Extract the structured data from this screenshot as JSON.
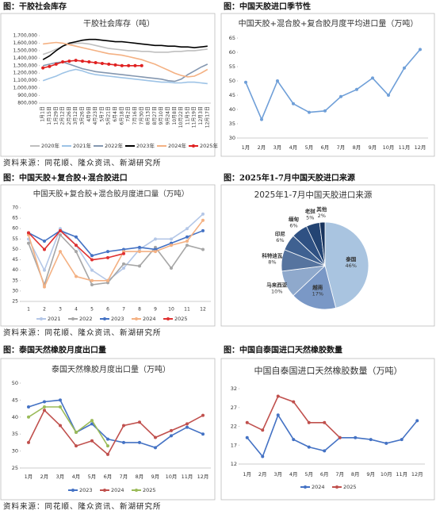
{
  "chart_data": [
    {
      "type": "line",
      "panel_title": "图：干胶社会库存",
      "title": "干胶社会库存（吨）",
      "categories": [
        "1月1日",
        "1月15日",
        "1月29日",
        "2月12日",
        "2月26日",
        "3月12日",
        "3月26日",
        "4月9日",
        "4月23日",
        "5月7日",
        "5月21日",
        "6月4日",
        "6月18日",
        "7月2日",
        "7月16日",
        "7月30日",
        "8月13日",
        "8月27日",
        "9月10日",
        "9月24日",
        "10月8日",
        "10月22日",
        "11月5日",
        "11月19日",
        "12月3日",
        "12月17日"
      ],
      "ylim": [
        800000,
        1700000
      ],
      "yticks": [
        {
          "value": 800000,
          "label": "800,000"
        },
        {
          "value": 900000,
          "label": "900,000"
        },
        {
          "value": 1000000,
          "label": "1,000,000"
        },
        {
          "value": 1100000,
          "label": "1,100,000"
        },
        {
          "value": 1200000,
          "label": "1,200,000"
        },
        {
          "value": 1300000,
          "label": "1,300,000"
        },
        {
          "value": 1400000,
          "label": "1,400,000"
        },
        {
          "value": 1500000,
          "label": "1,500,000"
        },
        {
          "value": 1600000,
          "label": "1,600,000"
        },
        {
          "value": 1700000,
          "label": "1,700,000"
        }
      ],
      "grid": false,
      "series": [
        {
          "name": "2020年",
          "color": "#bfbfbf",
          "values": [
            1450000,
            1480000,
            1520000,
            1560000,
            1590000,
            1600000,
            1600000,
            1590000,
            1570000,
            1550000,
            1530000,
            1520000,
            1510000,
            1500000,
            1500000,
            1490000,
            1490000,
            1480000,
            1480000,
            1480000,
            1490000,
            1490000,
            1500000,
            1500000,
            1510000,
            1520000
          ]
        },
        {
          "name": "2021年",
          "color": "#9dc3e6",
          "values": [
            1100000,
            1130000,
            1160000,
            1200000,
            1230000,
            1250000,
            1230000,
            1200000,
            1180000,
            1170000,
            1160000,
            1150000,
            1140000,
            1130000,
            1120000,
            1110000,
            1100000,
            1090000,
            1080000,
            1080000,
            1070000,
            1070000,
            1080000,
            1080000,
            1070000,
            1060000
          ]
        },
        {
          "name": "2022年",
          "color": "#8497b0",
          "values": [
            1300000,
            1320000,
            1340000,
            1350000,
            1320000,
            1290000,
            1260000,
            1240000,
            1220000,
            1210000,
            1200000,
            1190000,
            1180000,
            1170000,
            1160000,
            1150000,
            1140000,
            1130000,
            1120000,
            1100000,
            1090000,
            1120000,
            1180000,
            1230000,
            1280000,
            1320000
          ]
        },
        {
          "name": "2023年",
          "color": "#000000",
          "values": [
            1380000,
            1430000,
            1500000,
            1560000,
            1600000,
            1620000,
            1640000,
            1650000,
            1650000,
            1640000,
            1630000,
            1620000,
            1620000,
            1610000,
            1600000,
            1590000,
            1580000,
            1570000,
            1570000,
            1560000,
            1560000,
            1550000,
            1550000,
            1540000,
            1550000,
            1560000
          ]
        },
        {
          "name": "2024年",
          "color": "#f4b183",
          "values": [
            1590000,
            1600000,
            1610000,
            1600000,
            1580000,
            1560000,
            1540000,
            1520000,
            1500000,
            1480000,
            1460000,
            1450000,
            1440000,
            1420000,
            1400000,
            1380000,
            1350000,
            1320000,
            1280000,
            1240000,
            1200000,
            1170000,
            1150000,
            1160000,
            1200000,
            1250000
          ]
        },
        {
          "name": "2025年",
          "color": "#e02020",
          "marker": true,
          "values": [
            1270000,
            1290000,
            1320000,
            1350000,
            1360000,
            1370000,
            1360000,
            1350000,
            1340000,
            1330000,
            1320000,
            1310000,
            1300000,
            1300000,
            1300000,
            1300000,
            null,
            null,
            null,
            null,
            null,
            null,
            null,
            null,
            null,
            null
          ]
        }
      ]
    },
    {
      "type": "line",
      "panel_title": "图：中国天胶进口季节性",
      "title": "中国天胶+混合胶+复合胶月度平均进口量（万吨）",
      "categories": [
        "1月",
        "2月",
        "3月",
        "4月",
        "5月",
        "6月",
        "7月",
        "8月",
        "9月",
        "10月",
        "11月",
        "12月"
      ],
      "ylim": [
        30,
        65
      ],
      "yticks": [
        30,
        35,
        40,
        45,
        50,
        55,
        60,
        65
      ],
      "grid": false,
      "series": [
        {
          "name": null,
          "color": "#6f9fd8",
          "marker": true,
          "values": [
            49.5,
            36.5,
            50,
            42,
            39,
            39.5,
            44.5,
            47,
            51,
            45,
            54.5,
            61
          ]
        }
      ]
    },
    {
      "type": "line",
      "panel_title": "图：中国天胶+复合胶+混合胶进口",
      "title": "中国天胶+复合胶+混合胶月度进口量（万吨）",
      "categories": [
        "1",
        "2",
        "3",
        "4",
        "5",
        "6",
        "7",
        "8",
        "9",
        "10",
        "11",
        "12"
      ],
      "ylim": [
        25,
        70
      ],
      "yticks": [
        25,
        30,
        35,
        40,
        45,
        50,
        55,
        60,
        65,
        70
      ],
      "grid": false,
      "series": [
        {
          "name": "2021",
          "color": "#b4c7e7",
          "marker": true,
          "values": [
            55,
            40,
            60,
            52,
            40,
            35,
            41,
            50,
            55,
            55,
            60,
            67
          ]
        },
        {
          "name": "2022",
          "color": "#a6a6a6",
          "marker": true,
          "values": [
            53,
            33,
            57,
            49,
            33,
            34,
            43,
            42,
            51,
            41,
            52,
            50
          ]
        },
        {
          "name": "2023",
          "color": "#4472c4",
          "marker": true,
          "values": [
            58,
            54,
            59,
            56,
            47,
            49,
            50,
            51,
            50,
            53,
            56,
            59
          ]
        },
        {
          "name": "2024",
          "color": "#f4b183",
          "marker": true,
          "values": [
            57,
            32,
            49,
            37,
            35,
            35,
            49,
            49,
            49,
            52,
            54,
            64
          ]
        },
        {
          "name": "2025",
          "color": "#e03030",
          "marker": true,
          "values": [
            58,
            50,
            59,
            52,
            45,
            46,
            48,
            null,
            null,
            null,
            null,
            null
          ]
        }
      ]
    },
    {
      "type": "pie",
      "panel_title": "图：2025年1-7月中国天胶进口来源",
      "title": "2025年1-7月中国天胶进口来源",
      "categories": [
        "泰国",
        "越南",
        "马来西亚",
        "科特迪瓦",
        "印尼",
        "缅甸",
        "老挝",
        "其他"
      ],
      "values": [
        46,
        17,
        10,
        8,
        6,
        6,
        5,
        2
      ],
      "value_labels": [
        "46%",
        "17%",
        "10%",
        "8%",
        "6%",
        "6%",
        "5%",
        "2%"
      ],
      "colors": [
        "#a9c4e0",
        "#7a98c6",
        "#8fa9cc",
        "#56749f",
        "#3f6191",
        "#2f5183",
        "#234473",
        "#18345e"
      ]
    },
    {
      "type": "line",
      "panel_title": "图：泰国天然橡胶月度出口量",
      "title": "泰国天然橡胶月度出口量（万吨）",
      "categories": [
        "1月",
        "2月",
        "3月",
        "4月",
        "5月",
        "6月",
        "7月",
        "8月",
        "9月",
        "10月",
        "11月",
        "12月"
      ],
      "ylim": [
        25,
        50
      ],
      "yticks": [
        25,
        30,
        35,
        40,
        45,
        50
      ],
      "grid": false,
      "series": [
        {
          "name": "2023",
          "color": "#4472c4",
          "marker": true,
          "values": [
            43,
            44.5,
            45,
            35.5,
            38,
            33.5,
            32.5,
            32.5,
            31,
            34.5,
            37,
            35
          ]
        },
        {
          "name": "2024",
          "color": "#c0504d",
          "marker": true,
          "values": [
            32.5,
            42,
            37.5,
            31.5,
            33,
            29,
            37.5,
            38.5,
            34,
            36,
            38,
            40.5
          ]
        },
        {
          "name": "2025",
          "color": "#9bbb59",
          "marker": true,
          "values": [
            40,
            43,
            43,
            35.5,
            39,
            31.5,
            null,
            null,
            null,
            null,
            null,
            null
          ]
        }
      ]
    },
    {
      "type": "line",
      "panel_title": "图：中国自泰国进口天然橡胶数量",
      "title": "中国自泰国进口天然橡胶数量（万吨）",
      "categories": [
        "1月",
        "2月",
        "3月",
        "4月",
        "5月",
        "6月",
        "7月",
        "8月",
        "9月",
        "10月",
        "11月",
        "12月"
      ],
      "ylim": [
        12,
        32
      ],
      "yticks": [
        12,
        17,
        22,
        27,
        32
      ],
      "grid": false,
      "series": [
        {
          "name": "2024",
          "color": "#4472c4",
          "marker": true,
          "values": [
            19,
            14,
            25,
            18.5,
            16.5,
            15.5,
            19,
            19,
            18.5,
            17.5,
            18.5,
            23.5
          ]
        },
        {
          "name": "2025",
          "color": "#c0504d",
          "marker": true,
          "values": [
            23,
            21,
            30,
            28.5,
            23,
            23,
            19,
            null,
            null,
            null,
            null,
            null
          ]
        }
      ]
    }
  ],
  "sources": [
    "资料来源：同花顺、隆众资讯、新湖研究所",
    "资料来源：同花顺、隆众资讯、新湖研究所",
    "资料来源：同花顺、隆众资讯、新湖研究所"
  ]
}
